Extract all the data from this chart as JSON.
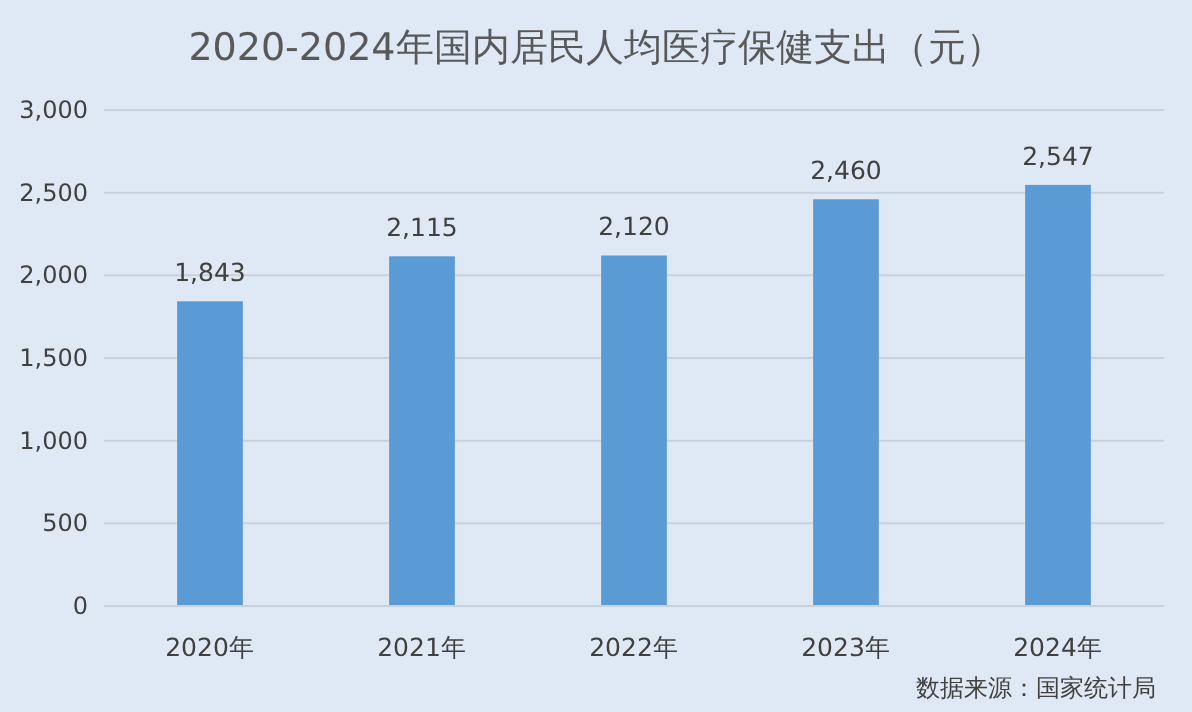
{
  "chart_data": {
    "type": "bar",
    "title": "2020-2024年国内居民人均医疗保健支出（元）",
    "categories": [
      "2020年",
      "2021年",
      "2022年",
      "2023年",
      "2024年"
    ],
    "values": [
      1843,
      2115,
      2120,
      2460,
      2547
    ],
    "value_labels": [
      "1,843",
      "2,115",
      "2,120",
      "2,460",
      "2,547"
    ],
    "color": "#5b9bd5",
    "ylim": [
      0,
      3000
    ],
    "yticks": [
      0,
      {
        "value": 500,
        "label": "500"
      },
      {
        "value": 1000,
        "label": "1,000"
      },
      {
        "value": 1500,
        "label": "1,500"
      },
      {
        "value": 2000,
        "label": "2,000"
      },
      {
        "value": 2500,
        "label": "2,500"
      },
      {
        "value": 3000,
        "label": "3,000"
      }
    ],
    "grid": "y",
    "annotations": [
      "数据来源：国家统计局"
    ]
  }
}
